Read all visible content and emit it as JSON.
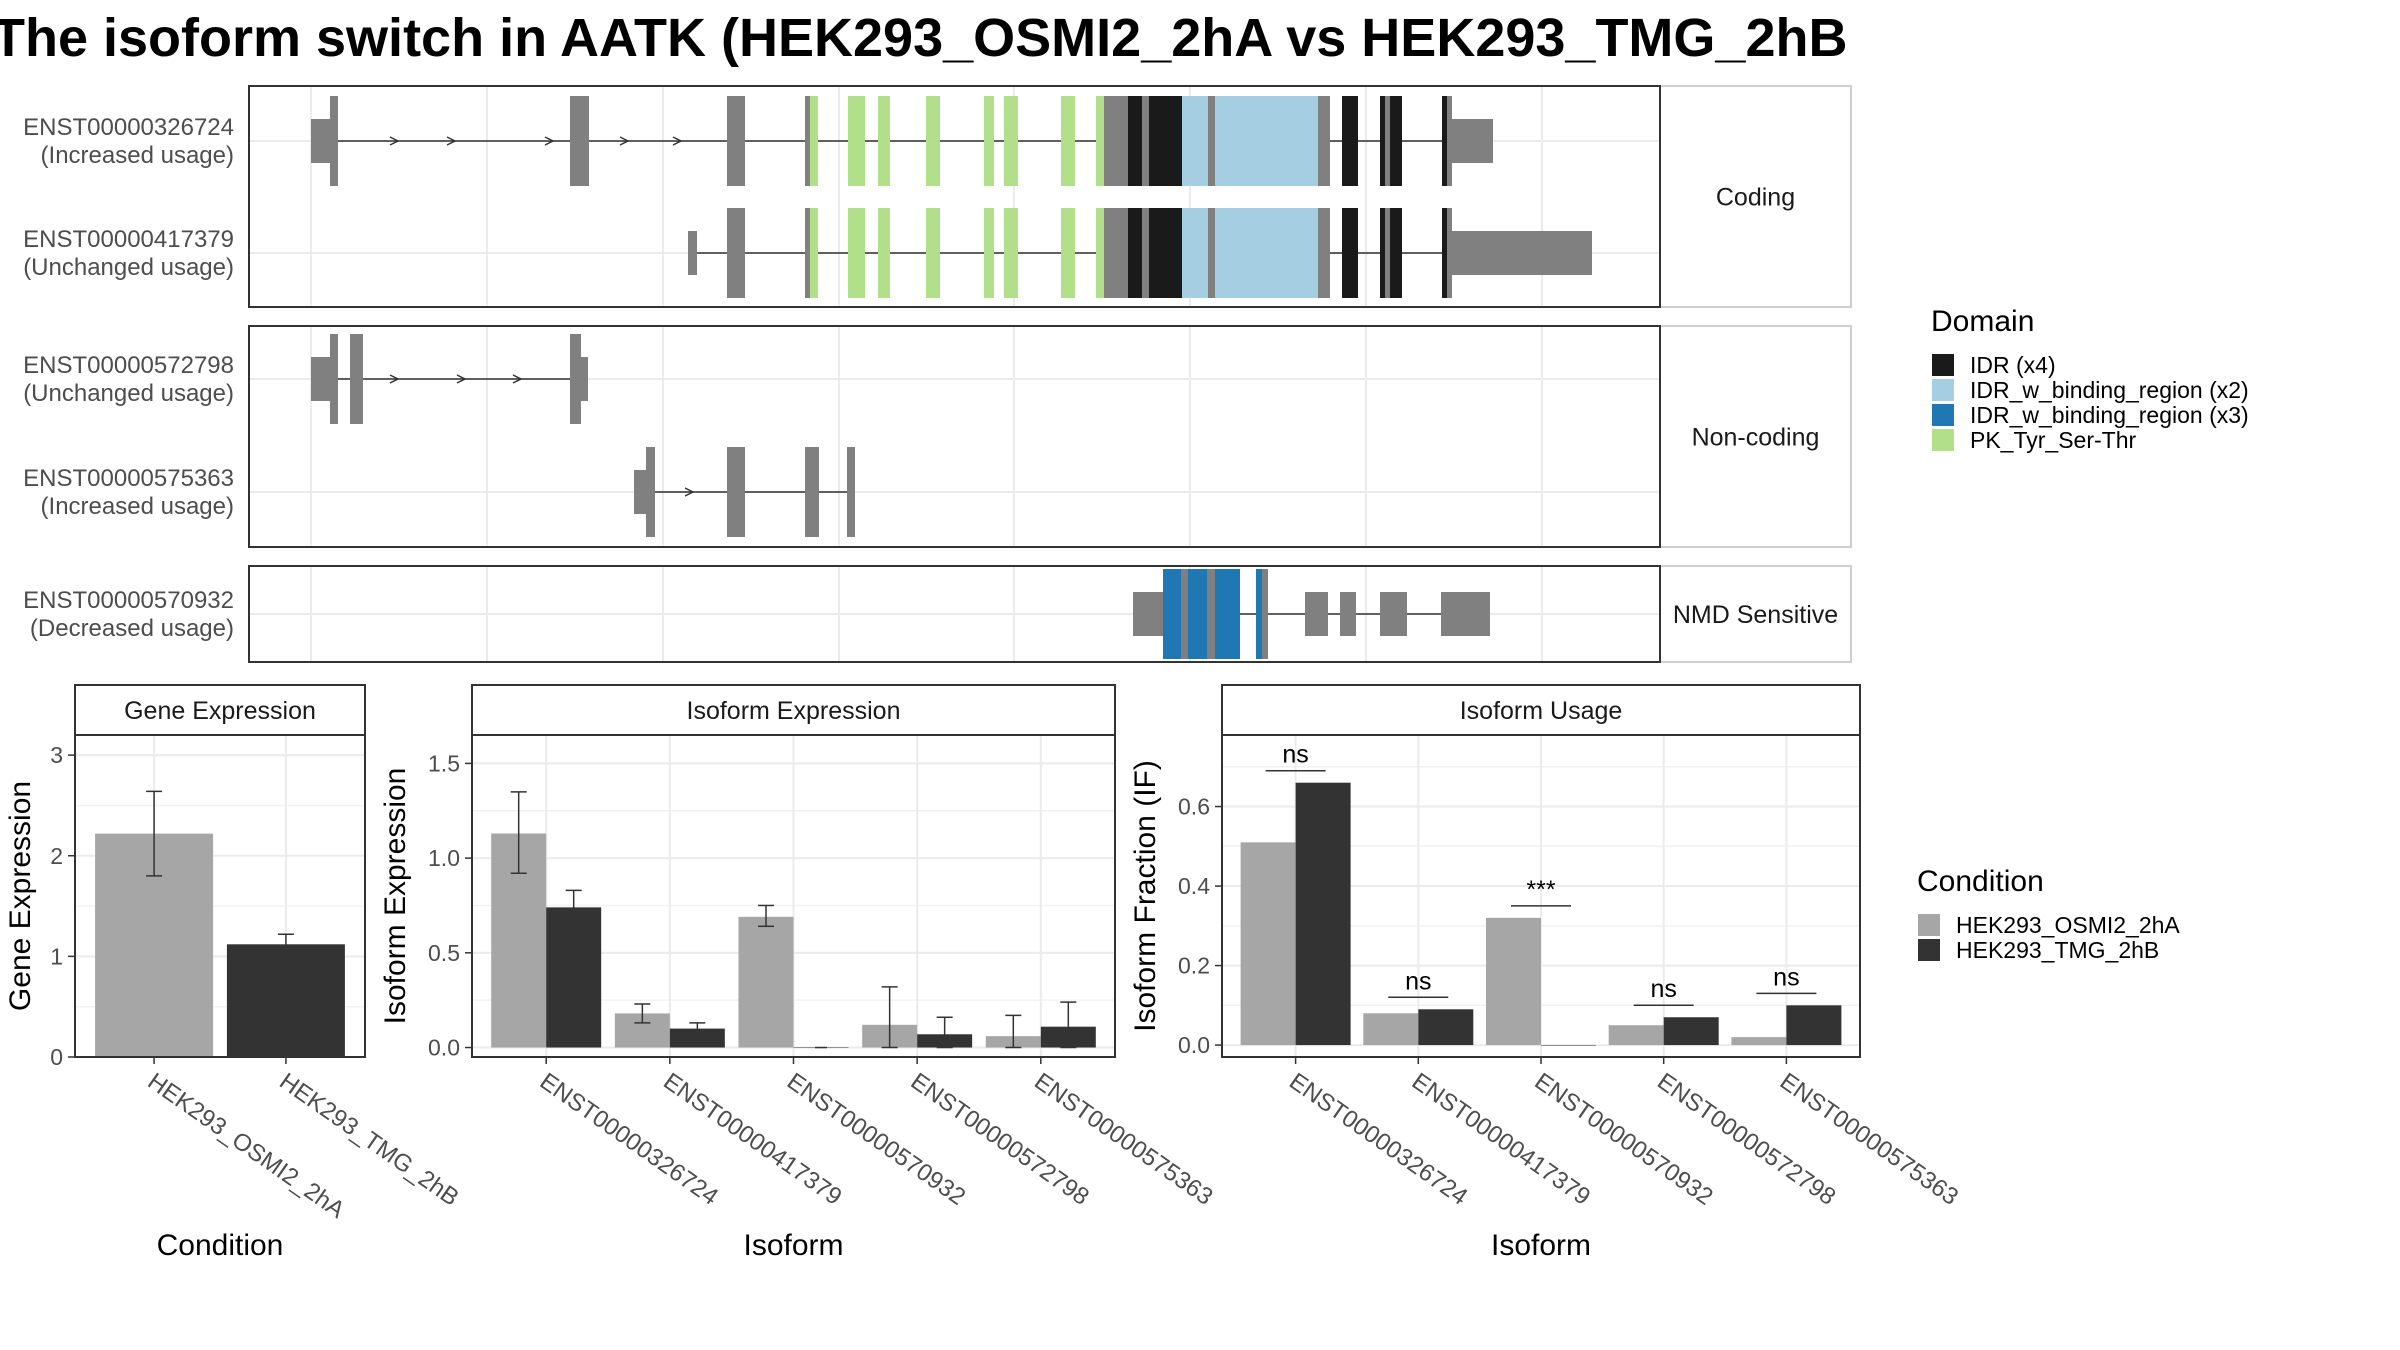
{
  "title": "The isoform switch in AATK (HEK293_OSMI2_2hA vs HEK293_TMG_2hB",
  "colors": {
    "cond1": "#a6a6a6",
    "cond2": "#333333",
    "exon": "#808080",
    "IDR": "#1a1a1a",
    "IDR_bind2": "#a6cee3",
    "IDR_bind3": "#1f78b4",
    "PK": "#b2df8a",
    "strip_bg": "#ffffff",
    "grid": "#ebebeb"
  },
  "structure": {
    "panels": [
      {
        "strip": "Coding",
        "tracks": [
          {
            "id": "ENST00000326724",
            "status": "(Increased usage)"
          },
          {
            "id": "ENST00000417379",
            "status": "(Unchanged usage)"
          }
        ]
      },
      {
        "strip": "Non-coding",
        "tracks": [
          {
            "id": "ENST00000572798",
            "status": "(Unchanged usage)"
          },
          {
            "id": "ENST00000575363",
            "status": "(Increased usage)"
          }
        ]
      },
      {
        "strip": "NMD Sensitive",
        "tracks": [
          {
            "id": "ENST00000570932",
            "status": "(Decreased usage)"
          }
        ]
      }
    ]
  },
  "legend": {
    "domain": {
      "title": "Domain",
      "items": [
        {
          "label": "IDR (x4)",
          "color": "#1a1a1a"
        },
        {
          "label": "IDR_w_binding_region (x2)",
          "color": "#a6cee3"
        },
        {
          "label": "IDR_w_binding_region (x3)",
          "color": "#1f78b4"
        },
        {
          "label": "PK_Tyr_Ser-Thr",
          "color": "#b2df8a"
        }
      ]
    },
    "condition": {
      "title": "Condition",
      "items": [
        {
          "label": "HEK293_OSMI2_2hA",
          "color": "#a6a6a6"
        },
        {
          "label": "HEK293_TMG_2hB",
          "color": "#333333"
        }
      ]
    }
  },
  "chart_data": [
    {
      "type": "bar",
      "title": "Gene Expression",
      "xlabel": "Condition",
      "ylabel": "Gene Expression",
      "categories": [
        "HEK293_OSMI2_2hA",
        "HEK293_TMG_2hB"
      ],
      "values": [
        2.22,
        1.12
      ],
      "errors": [
        [
          1.8,
          2.64
        ],
        [
          1.03,
          1.22
        ]
      ],
      "ylim": [
        0,
        3.2
      ],
      "yticks": [
        0,
        1,
        2,
        3
      ]
    },
    {
      "type": "bar",
      "title": "Isoform Expression",
      "xlabel": "Isoform",
      "ylabel": "Isoform Expression",
      "categories": [
        "ENST00000326724",
        "ENST00000417379",
        "ENST00000570932",
        "ENST00000572798",
        "ENST00000575363"
      ],
      "series": [
        {
          "name": "HEK293_OSMI2_2hA",
          "values": [
            1.13,
            0.18,
            0.69,
            0.12,
            0.06
          ],
          "errors": [
            [
              0.92,
              1.35
            ],
            [
              0.13,
              0.23
            ],
            [
              0.64,
              0.75
            ],
            [
              0.0,
              0.32
            ],
            [
              0.0,
              0.17
            ]
          ]
        },
        {
          "name": "HEK293_TMG_2hB",
          "values": [
            0.74,
            0.1,
            0.0,
            0.07,
            0.11
          ],
          "errors": [
            [
              0.65,
              0.83
            ],
            [
              0.07,
              0.13
            ],
            [
              0.0,
              0.0
            ],
            [
              0.0,
              0.16
            ],
            [
              0.0,
              0.24
            ]
          ]
        }
      ],
      "ylim": [
        -0.05,
        1.65
      ],
      "yticks": [
        0.0,
        0.5,
        1.0,
        1.5
      ],
      "ytick_labels": [
        "0.0",
        "0.5",
        "1.0",
        "1.5"
      ]
    },
    {
      "type": "bar",
      "title": "Isoform Usage",
      "xlabel": "Isoform",
      "ylabel": "Isoform Fraction (IF)",
      "categories": [
        "ENST00000326724",
        "ENST00000417379",
        "ENST00000570932",
        "ENST00000572798",
        "ENST00000575363"
      ],
      "series": [
        {
          "name": "HEK293_OSMI2_2hA",
          "values": [
            0.51,
            0.08,
            0.32,
            0.05,
            0.02
          ]
        },
        {
          "name": "HEK293_TMG_2hB",
          "values": [
            0.66,
            0.09,
            0.0,
            0.07,
            0.1
          ]
        }
      ],
      "significance": [
        "ns",
        "ns",
        "***",
        "ns",
        "ns"
      ],
      "ylim": [
        -0.03,
        0.78
      ],
      "yticks": [
        0.0,
        0.2,
        0.4,
        0.6
      ],
      "ytick_labels": [
        "0.0",
        "0.2",
        "0.4",
        "0.6"
      ]
    }
  ]
}
